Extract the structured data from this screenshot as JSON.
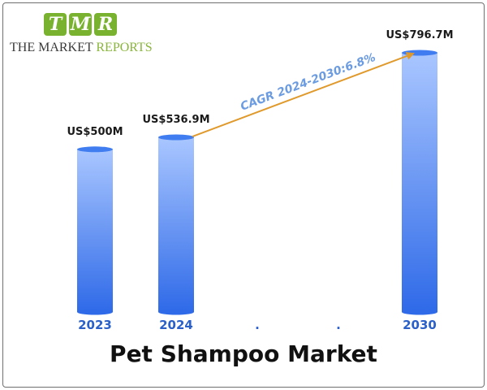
{
  "logo": {
    "letters": [
      "T",
      "M",
      "R"
    ],
    "text_main": "THE MARKET ",
    "text_accent": "REPORTS"
  },
  "chart_data": {
    "type": "bar",
    "title": "Pet Shampoo Market",
    "categories": [
      "2023",
      "2024",
      ".",
      ".",
      "2030"
    ],
    "values": [
      500,
      536.9,
      null,
      null,
      796.7
    ],
    "value_labels": [
      "US$500M",
      "US$536.9M",
      "",
      "",
      "US$796.7M"
    ],
    "annotation": "CAGR 2024-2030:6.8%",
    "xlabel": "",
    "ylabel": "",
    "grid": false,
    "legend": "none",
    "colors": {
      "bar_top": "#a9c6ff",
      "bar_bottom": "#2f6ae8",
      "cap": "#3f7df0",
      "arrow": "#e09a2c",
      "cagr_text": "#6b9be0",
      "category_text": "#2a60c8"
    }
  }
}
